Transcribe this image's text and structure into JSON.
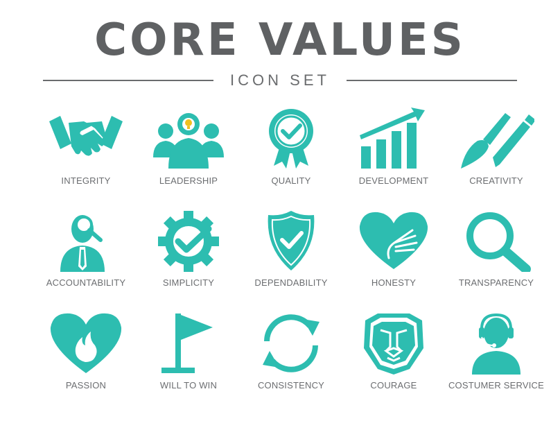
{
  "header": {
    "title": "CORE VALUES",
    "subtitle": "ICON SET"
  },
  "colors": {
    "accent": "#2dbdb0",
    "text": "#6b6d70",
    "title": "#5f6163"
  },
  "icons": [
    {
      "label": "INTEGRITY",
      "icon": "handshake-icon"
    },
    {
      "label": "LEADERSHIP",
      "icon": "leader-group-icon"
    },
    {
      "label": "QUALITY",
      "icon": "quality-badge-icon"
    },
    {
      "label": "DEVELOPMENT",
      "icon": "growth-chart-icon"
    },
    {
      "label": "CREATIVITY",
      "icon": "brush-pencil-icon"
    },
    {
      "label": "ACCOUNTABILITY",
      "icon": "person-magnifier-icon"
    },
    {
      "label": "SIMPLICITY",
      "icon": "gear-check-icon"
    },
    {
      "label": "DEPENDABILITY",
      "icon": "shield-check-icon"
    },
    {
      "label": "HONESTY",
      "icon": "heart-hand-icon"
    },
    {
      "label": "TRANSPARENCY",
      "icon": "magnifier-icon"
    },
    {
      "label": "PASSION",
      "icon": "heart-flame-icon"
    },
    {
      "label": "WILL TO WIN",
      "icon": "flag-icon"
    },
    {
      "label": "CONSISTENCY",
      "icon": "cycle-arrows-icon"
    },
    {
      "label": "COURAGE",
      "icon": "lion-face-icon"
    },
    {
      "label": "COSTUMER SERVICE",
      "icon": "headset-agent-icon"
    }
  ]
}
